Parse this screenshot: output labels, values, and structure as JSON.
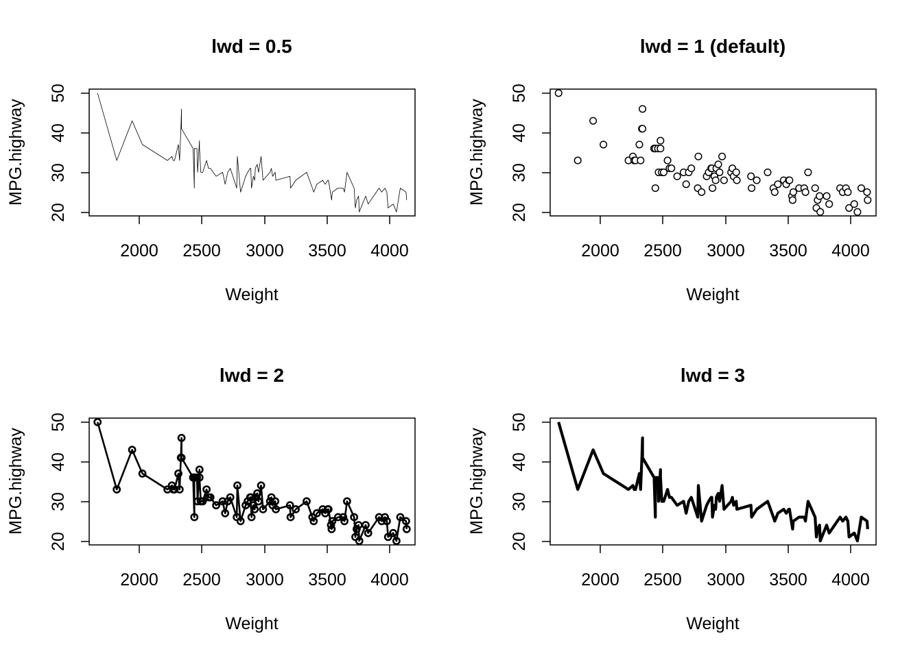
{
  "chart_data": [
    {
      "type": "line",
      "title": "lwd = 0.5",
      "xlabel": "Weight",
      "ylabel": "MPG.highway",
      "xticks": [
        2000,
        2500,
        3000,
        3500,
        4000
      ],
      "yticks": [
        20,
        30,
        40,
        50
      ],
      "xlim": [
        1630,
        4170
      ],
      "ylim": [
        19,
        51
      ],
      "grid": false,
      "legend": "none",
      "series_ref": "shared"
    },
    {
      "type": "scatter",
      "title": "lwd = 1 (default)",
      "xlabel": "Weight",
      "ylabel": "MPG.highway",
      "xticks": [
        2000,
        2500,
        3000,
        3500,
        4000
      ],
      "yticks": [
        20,
        30,
        40,
        50
      ],
      "xlim": [
        1630,
        4170
      ],
      "ylim": [
        19,
        51
      ],
      "grid": false,
      "legend": "none",
      "series_ref": "shared"
    },
    {
      "type": "line",
      "title": "lwd = 2",
      "xlabel": "Weight",
      "ylabel": "MPG.highway",
      "xticks": [
        2000,
        2500,
        3000,
        3500,
        4000
      ],
      "yticks": [
        20,
        30,
        40,
        50
      ],
      "xlim": [
        1630,
        4170
      ],
      "ylim": [
        19,
        51
      ],
      "grid": false,
      "legend": "none",
      "series_ref": "shared"
    },
    {
      "type": "line",
      "title": "lwd = 3",
      "xlabel": "Weight",
      "ylabel": "MPG.highway",
      "xticks": [
        2000,
        2500,
        3000,
        3500,
        4000
      ],
      "yticks": [
        20,
        30,
        40,
        50
      ],
      "xlim": [
        1630,
        4170
      ],
      "ylim": [
        19,
        51
      ],
      "grid": false,
      "legend": "none",
      "series_ref": "shared"
    }
  ],
  "shared_series": {
    "x": [
      1695,
      1845,
      1965,
      2045,
      2240,
      2275,
      2285,
      2295,
      2325,
      2335,
      2345,
      2350,
      2350,
      2440,
      2450,
      2450,
      2470,
      2475,
      2490,
      2490,
      2500,
      2515,
      2545,
      2560,
      2575,
      2620,
      2670,
      2690,
      2710,
      2730,
      2780,
      2785,
      2810,
      2850,
      2865,
      2885,
      2890,
      2895,
      2910,
      2920,
      2925,
      2940,
      2950,
      2970,
      2985,
      3040,
      3050,
      3060,
      3080,
      3085,
      3195,
      3200,
      3240,
      3325,
      3370,
      3380,
      3405,
      3450,
      3470,
      3490,
      3495,
      3515,
      3520,
      3525,
      3570,
      3610,
      3620,
      3640,
      3695,
      3705,
      3715,
      3730,
      3735,
      3785,
      3805,
      3890,
      3910,
      3935,
      3950,
      3960,
      4000,
      4025,
      4055,
      4100,
      4105
    ],
    "y": [
      50,
      33,
      43,
      37,
      33,
      34,
      33,
      33,
      37,
      33,
      41,
      46,
      41,
      36,
      26,
      36,
      36,
      30,
      38,
      36,
      30,
      30,
      33,
      31,
      31,
      29,
      30,
      27,
      30,
      31,
      26,
      34,
      25,
      29,
      30,
      31,
      31,
      26,
      29,
      28,
      31,
      32,
      30,
      34,
      28,
      30,
      31,
      29,
      30,
      28,
      29,
      26,
      28,
      30,
      26,
      25,
      27,
      28,
      27,
      28,
      28,
      24,
      23,
      25,
      26,
      26,
      25,
      30,
      26,
      21,
      23,
      24,
      20,
      24,
      22,
      26,
      25,
      26,
      25,
      21,
      22,
      20,
      26,
      25,
      23
    ]
  }
}
